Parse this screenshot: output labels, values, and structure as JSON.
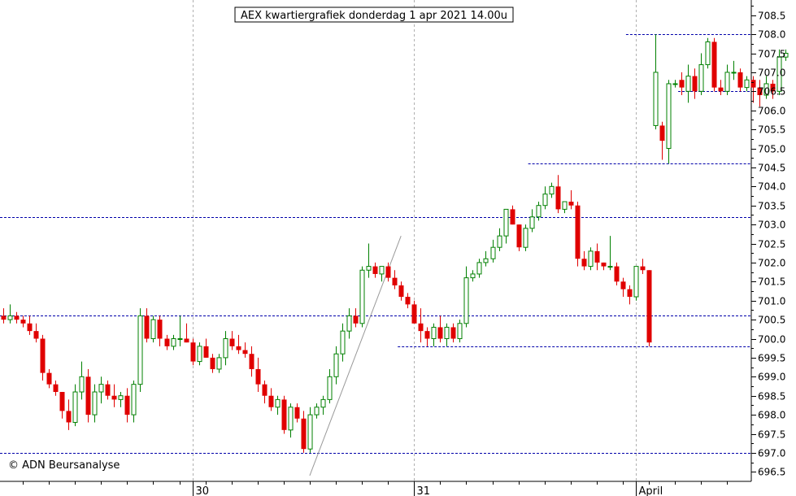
{
  "chart_data": {
    "type": "candlestick",
    "title": "AEX kwartiergrafiek donderdag 1 apr 2021 14.00u",
    "credit": "© ADN Beursanalyse",
    "y_axis": {
      "position": "right",
      "range": [
        696.25,
        708.9
      ],
      "ticks": [
        "696.5",
        "697.0",
        "697.5",
        "698.0",
        "698.5",
        "699.0",
        "699.5",
        "700.0",
        "700.5",
        "701.0",
        "701.5",
        "702.0",
        "702.5",
        "703.0",
        "703.5",
        "704.0",
        "704.5",
        "705.0",
        "705.5",
        "706.0",
        "706.5",
        "707.0",
        "707.5",
        "708.0",
        "708.5"
      ]
    },
    "x_axis": {
      "labels": [
        {
          "text": "30",
          "index": 29
        },
        {
          "text": "31",
          "index": 63
        },
        {
          "text": "April",
          "index": 97
        }
      ]
    },
    "colors": {
      "up": "#008000",
      "down": "#e00000",
      "level": "#0000aa",
      "grid": "#b0b0b0",
      "trend": "#999999"
    },
    "candles": [
      [
        700.6,
        700.8,
        700.4,
        700.5
      ],
      [
        700.5,
        700.9,
        700.4,
        700.6
      ],
      [
        700.6,
        700.7,
        700.4,
        700.5
      ],
      [
        700.5,
        700.6,
        700.3,
        700.4
      ],
      [
        700.4,
        700.6,
        700.1,
        700.2
      ],
      [
        700.2,
        700.4,
        699.9,
        700.0
      ],
      [
        700.0,
        700.1,
        698.9,
        699.1
      ],
      [
        699.1,
        699.2,
        698.7,
        698.8
      ],
      [
        698.8,
        698.9,
        698.5,
        698.6
      ],
      [
        698.6,
        698.6,
        697.9,
        698.1
      ],
      [
        698.1,
        698.4,
        697.6,
        697.8
      ],
      [
        697.8,
        698.8,
        697.7,
        698.6
      ],
      [
        698.6,
        699.4,
        698.4,
        699.0
      ],
      [
        699.0,
        699.2,
        697.8,
        698.0
      ],
      [
        698.0,
        698.8,
        697.8,
        698.6
      ],
      [
        698.6,
        699.0,
        698.3,
        698.8
      ],
      [
        698.8,
        698.9,
        698.4,
        698.5
      ],
      [
        698.5,
        698.8,
        698.2,
        698.4
      ],
      [
        698.4,
        698.6,
        698.2,
        698.5
      ],
      [
        698.5,
        698.7,
        697.8,
        698.0
      ],
      [
        698.0,
        698.9,
        697.8,
        698.8
      ],
      [
        698.8,
        700.8,
        698.6,
        700.6
      ],
      [
        700.6,
        700.8,
        699.9,
        700.0
      ],
      [
        700.0,
        700.6,
        699.9,
        700.5
      ],
      [
        700.5,
        700.6,
        699.8,
        700.0
      ],
      [
        700.0,
        700.1,
        699.7,
        699.8
      ],
      [
        699.8,
        700.1,
        699.7,
        700.0
      ],
      [
        700.0,
        700.6,
        699.8,
        700.0
      ],
      [
        700.0,
        700.4,
        699.9,
        699.9
      ],
      [
        699.9,
        700.0,
        699.3,
        699.4
      ],
      [
        699.4,
        699.9,
        699.3,
        699.8
      ],
      [
        699.8,
        700.0,
        699.5,
        699.5
      ],
      [
        699.5,
        699.6,
        699.1,
        699.2
      ],
      [
        699.2,
        699.6,
        699.1,
        699.5
      ],
      [
        699.5,
        700.2,
        699.3,
        700.0
      ],
      [
        700.0,
        700.2,
        699.7,
        699.8
      ],
      [
        699.8,
        700.1,
        699.6,
        699.7
      ],
      [
        699.7,
        699.9,
        699.5,
        699.6
      ],
      [
        699.6,
        699.8,
        699.0,
        699.2
      ],
      [
        699.2,
        699.5,
        698.6,
        698.8
      ],
      [
        698.8,
        698.9,
        698.3,
        698.5
      ],
      [
        698.5,
        698.7,
        698.1,
        698.2
      ],
      [
        698.2,
        698.5,
        698.0,
        698.4
      ],
      [
        698.4,
        698.5,
        697.5,
        697.6
      ],
      [
        697.6,
        698.3,
        697.4,
        698.2
      ],
      [
        698.2,
        698.3,
        697.8,
        697.9
      ],
      [
        697.9,
        698.1,
        697.0,
        697.1
      ],
      [
        697.1,
        698.2,
        697.0,
        698.0
      ],
      [
        698.0,
        698.3,
        697.9,
        698.2
      ],
      [
        698.2,
        698.5,
        698.0,
        698.4
      ],
      [
        698.4,
        699.2,
        698.3,
        699.0
      ],
      [
        699.0,
        699.8,
        698.8,
        699.6
      ],
      [
        699.6,
        700.4,
        699.4,
        700.2
      ],
      [
        700.2,
        700.8,
        700.0,
        700.6
      ],
      [
        700.6,
        700.8,
        700.3,
        700.4
      ],
      [
        700.4,
        701.9,
        700.3,
        701.8
      ],
      [
        701.8,
        702.5,
        701.6,
        701.9
      ],
      [
        701.9,
        702.0,
        701.6,
        701.7
      ],
      [
        701.7,
        701.9,
        701.5,
        701.9
      ],
      [
        701.9,
        702.0,
        701.5,
        701.6
      ],
      [
        701.6,
        701.8,
        701.3,
        701.4
      ],
      [
        701.4,
        701.5,
        701.0,
        701.1
      ],
      [
        701.1,
        701.2,
        700.8,
        700.9
      ],
      [
        700.9,
        701.0,
        700.4,
        700.4
      ],
      [
        700.4,
        700.8,
        699.9,
        700.2
      ],
      [
        700.2,
        700.3,
        699.8,
        700.0
      ],
      [
        700.0,
        700.4,
        699.8,
        700.3
      ],
      [
        700.3,
        700.6,
        699.9,
        700.0
      ],
      [
        700.0,
        700.4,
        699.8,
        700.3
      ],
      [
        700.3,
        700.4,
        699.9,
        700.0
      ],
      [
        700.0,
        700.5,
        699.9,
        700.4
      ],
      [
        700.4,
        701.9,
        700.3,
        701.6
      ],
      [
        701.6,
        701.8,
        701.5,
        701.7
      ],
      [
        701.7,
        702.1,
        701.6,
        702.0
      ],
      [
        702.0,
        702.3,
        701.9,
        702.1
      ],
      [
        702.1,
        702.6,
        702.0,
        702.4
      ],
      [
        702.4,
        702.9,
        702.3,
        702.7
      ],
      [
        702.7,
        703.4,
        702.5,
        703.4
      ],
      [
        703.4,
        703.5,
        703.0,
        703.0
      ],
      [
        703.0,
        703.0,
        702.3,
        702.4
      ],
      [
        702.4,
        703.0,
        702.3,
        702.9
      ],
      [
        702.9,
        703.4,
        702.8,
        703.2
      ],
      [
        703.2,
        703.6,
        703.1,
        703.5
      ],
      [
        703.5,
        704.0,
        703.4,
        703.8
      ],
      [
        703.8,
        704.1,
        703.7,
        704.0
      ],
      [
        704.0,
        704.3,
        703.3,
        703.4
      ],
      [
        703.4,
        703.6,
        703.3,
        703.6
      ],
      [
        703.6,
        703.9,
        703.4,
        703.5
      ],
      [
        703.5,
        703.6,
        701.9,
        702.1
      ],
      [
        702.1,
        702.3,
        701.8,
        701.9
      ],
      [
        701.9,
        702.4,
        701.8,
        702.3
      ],
      [
        702.3,
        702.5,
        701.8,
        702.0
      ],
      [
        702.0,
        702.0,
        701.8,
        701.9
      ],
      [
        701.9,
        702.7,
        701.8,
        701.9
      ],
      [
        701.9,
        702.0,
        701.4,
        701.5
      ],
      [
        701.5,
        701.6,
        701.1,
        701.3
      ],
      [
        701.3,
        701.4,
        700.9,
        701.1
      ],
      [
        701.1,
        701.9,
        701.0,
        701.9
      ],
      [
        701.9,
        702.1,
        701.7,
        701.8
      ],
      [
        701.8,
        701.8,
        699.8,
        699.9
      ],
      [
        705.6,
        708.0,
        705.5,
        707.0
      ],
      [
        705.6,
        705.7,
        704.7,
        705.2
      ],
      [
        705.0,
        706.8,
        704.6,
        706.7
      ],
      [
        706.7,
        706.8,
        706.6,
        706.7
      ],
      [
        706.8,
        707.0,
        706.4,
        706.6
      ],
      [
        706.5,
        707.2,
        706.2,
        706.9
      ],
      [
        706.9,
        707.1,
        706.3,
        706.5
      ],
      [
        706.5,
        707.5,
        706.4,
        707.2
      ],
      [
        707.2,
        707.9,
        707.1,
        707.8
      ],
      [
        707.8,
        707.9,
        706.5,
        706.6
      ],
      [
        706.6,
        706.8,
        706.4,
        706.5
      ],
      [
        706.5,
        707.2,
        706.4,
        707.0
      ],
      [
        707.0,
        707.3,
        706.8,
        707.0
      ],
      [
        707.0,
        707.1,
        706.5,
        706.6
      ],
      [
        706.6,
        706.9,
        706.5,
        706.8
      ],
      [
        706.8,
        706.9,
        706.2,
        706.6
      ],
      [
        706.6,
        706.8,
        706.1,
        706.4
      ],
      [
        706.4,
        706.9,
        706.3,
        706.7
      ],
      [
        706.7,
        706.8,
        706.3,
        706.5
      ],
      [
        706.5,
        707.6,
        706.4,
        707.4
      ],
      [
        707.4,
        707.6,
        707.3,
        707.5
      ]
    ],
    "levels": [
      {
        "price": 708.0,
        "from_index": 96
      },
      {
        "price": 706.5,
        "from_index": 104
      },
      {
        "price": 704.6,
        "from_index": 81
      },
      {
        "price": 703.2,
        "from_index": 0
      },
      {
        "price": 700.6,
        "from_index": 0
      },
      {
        "price": 699.8,
        "from_index": 61
      },
      {
        "price": 697.0,
        "from_index": 0
      }
    ],
    "trendline": {
      "from": [
        47,
        696.4
      ],
      "to": [
        61,
        702.7
      ]
    }
  }
}
